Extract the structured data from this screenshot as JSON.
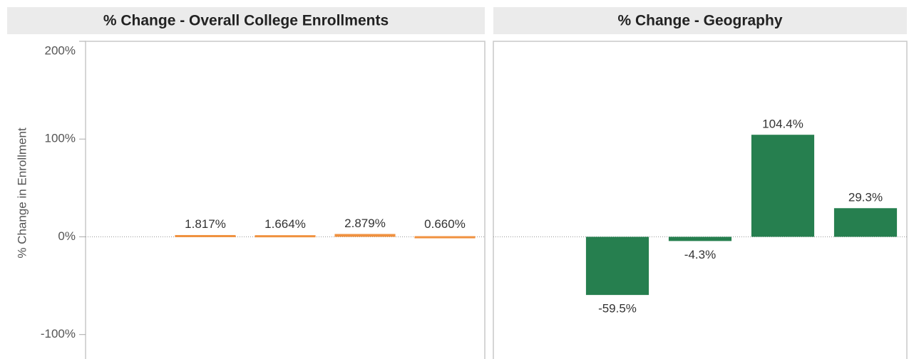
{
  "chart_data": [
    {
      "type": "bar",
      "title": "% Change - Overall College Enrollments",
      "y_label": "% Change in Enrollment",
      "categories": [
        null,
        null,
        null,
        null,
        null
      ],
      "values": [
        null,
        1.817,
        1.664,
        2.879,
        0.66
      ],
      "value_labels": [
        null,
        "1.817%",
        "1.664%",
        "2.879%",
        "0.660%"
      ],
      "color": "#f0913f",
      "ylim": [
        -125,
        200
      ],
      "yticks": [
        {
          "value": 200,
          "label": "200%"
        },
        {
          "value": 100,
          "label": "100%"
        },
        {
          "value": 0,
          "label": "0%"
        },
        {
          "value": -100,
          "label": "-100%"
        }
      ]
    },
    {
      "type": "bar",
      "title": "% Change - Geography",
      "categories": [
        null,
        null,
        null,
        null,
        null
      ],
      "values": [
        null,
        -59.5,
        -4.3,
        104.4,
        29.3
      ],
      "value_labels": [
        null,
        "-59.5%",
        "-4.3%",
        "104.4%",
        "29.3%"
      ],
      "color": "#267f4f",
      "ylim": [
        -125,
        200
      ]
    }
  ]
}
